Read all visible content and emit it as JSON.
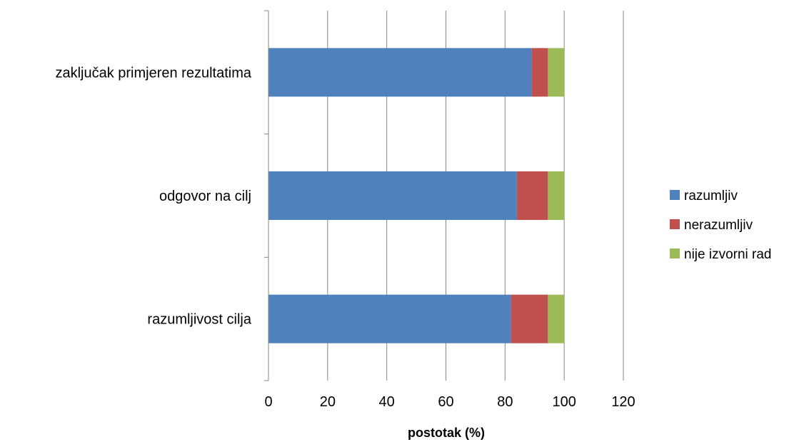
{
  "chart_data": {
    "type": "bar",
    "orientation": "horizontal",
    "stacked": true,
    "title": "",
    "xlabel": "postotak (%)",
    "ylabel": "",
    "xlim": [
      0,
      120
    ],
    "x_ticks": [
      0,
      20,
      40,
      60,
      80,
      100,
      120
    ],
    "grid": "vertical major gridlines",
    "legend_position": "right",
    "categories": [
      "razumljivost cilja",
      "odgovor na cilj",
      "zaključak primjeren rezultatima"
    ],
    "series": [
      {
        "name": "razumljiv",
        "color": "#4F81BD",
        "values": [
          82,
          84,
          89
        ]
      },
      {
        "name": "nerazumljiv",
        "color": "#C0504D",
        "values": [
          12.5,
          10.5,
          5.5
        ]
      },
      {
        "name": "nije izvorni rad",
        "color": "#9BBB59",
        "values": [
          5.5,
          5.5,
          5.5
        ]
      }
    ],
    "colors": {
      "gridline": "#868686",
      "axis": "#868686"
    }
  }
}
